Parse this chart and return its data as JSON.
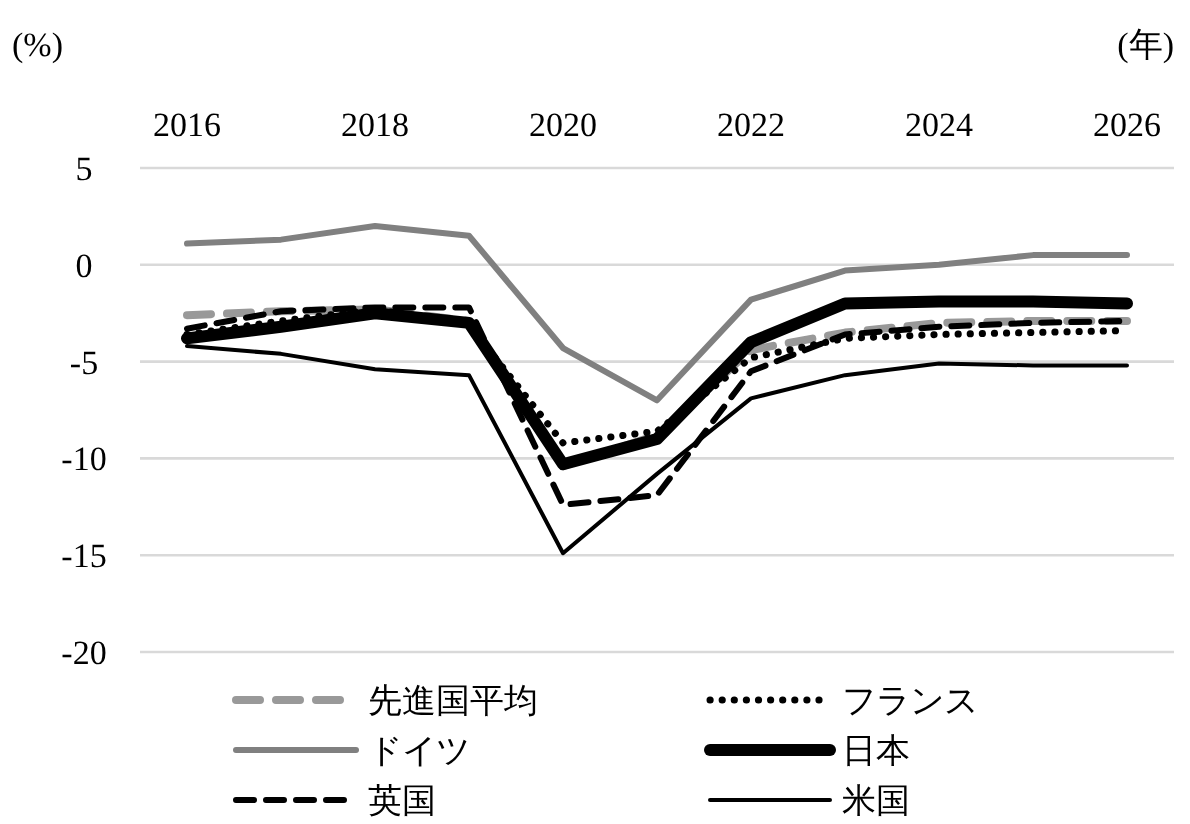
{
  "chart_data": {
    "type": "line",
    "xlabel": "(年)",
    "ylabel": "(%)",
    "x": [
      2016,
      2017,
      2018,
      2019,
      2020,
      2021,
      2022,
      2023,
      2024,
      2025,
      2026
    ],
    "xlim": [
      2015.5,
      2026.5
    ],
    "xticks": [
      2016,
      2018,
      2020,
      2022,
      2024,
      2026
    ],
    "ylim": [
      -20,
      5
    ],
    "yticks": [
      -20,
      -15,
      -10,
      -5,
      0,
      5
    ],
    "grid": "y",
    "legend": "bottom",
    "marker": "none",
    "series": [
      {
        "name": "先進国平均",
        "color": "#999999",
        "line_style": "dashed",
        "values": [
          -2.6,
          -2.4,
          -2.3,
          -2.9,
          -10.4,
          -8.8,
          -4.4,
          -3.5,
          -3.0,
          -2.9,
          -2.9
        ]
      },
      {
        "name": "フランス",
        "color": "#000000",
        "line_style": "dotted",
        "values": [
          -3.6,
          -2.9,
          -2.3,
          -3.1,
          -9.2,
          -8.6,
          -4.8,
          -3.8,
          -3.6,
          -3.5,
          -3.4
        ]
      },
      {
        "name": "ドイツ",
        "color": "#808080",
        "line_style": "solid",
        "values": [
          1.1,
          1.3,
          2.0,
          1.5,
          -4.3,
          -7.0,
          -1.8,
          -0.3,
          0.0,
          0.5,
          0.5
        ]
      },
      {
        "name": "日本",
        "color": "#000000",
        "line_style": "solid",
        "values": [
          -3.8,
          -3.2,
          -2.5,
          -3.0,
          -10.3,
          -9.0,
          -4.0,
          -2.0,
          -1.9,
          -1.9,
          -2.0
        ]
      },
      {
        "name": "英国",
        "color": "#000000",
        "line_style": "dashed",
        "values": [
          -3.3,
          -2.4,
          -2.2,
          -2.2,
          -12.4,
          -11.9,
          -5.5,
          -3.6,
          -3.2,
          -3.0,
          -2.9
        ]
      },
      {
        "name": "米国",
        "color": "#000000",
        "line_style": "solid",
        "values": [
          -4.2,
          -4.6,
          -5.4,
          -5.7,
          -14.9,
          -10.8,
          -6.9,
          -5.7,
          -5.1,
          -5.2,
          -5.2
        ]
      }
    ]
  }
}
